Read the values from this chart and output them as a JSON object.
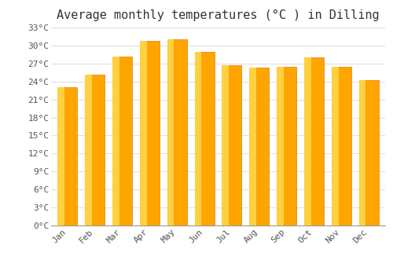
{
  "title": "Average monthly temperatures (°C ) in Dilling",
  "months": [
    "Jan",
    "Feb",
    "Mar",
    "Apr",
    "May",
    "Jun",
    "Jul",
    "Aug",
    "Sep",
    "Oct",
    "Nov",
    "Dec"
  ],
  "values": [
    23.0,
    25.2,
    28.2,
    30.8,
    31.0,
    29.0,
    26.7,
    26.3,
    26.5,
    28.0,
    26.5,
    24.2
  ],
  "bar_color_main": "#FFA500",
  "bar_color_light": "#FFD040",
  "bar_color_edge": "#E08000",
  "ylim": [
    0,
    33
  ],
  "yticks": [
    0,
    3,
    6,
    9,
    12,
    15,
    18,
    21,
    24,
    27,
    30,
    33
  ],
  "ytick_labels": [
    "0°C",
    "3°C",
    "6°C",
    "9°C",
    "12°C",
    "15°C",
    "18°C",
    "21°C",
    "24°C",
    "27°C",
    "30°C",
    "33°C"
  ],
  "bg_color": "#FFFFFF",
  "grid_color": "#E0E0E0",
  "title_fontsize": 11,
  "tick_fontsize": 8,
  "font_family": "monospace"
}
